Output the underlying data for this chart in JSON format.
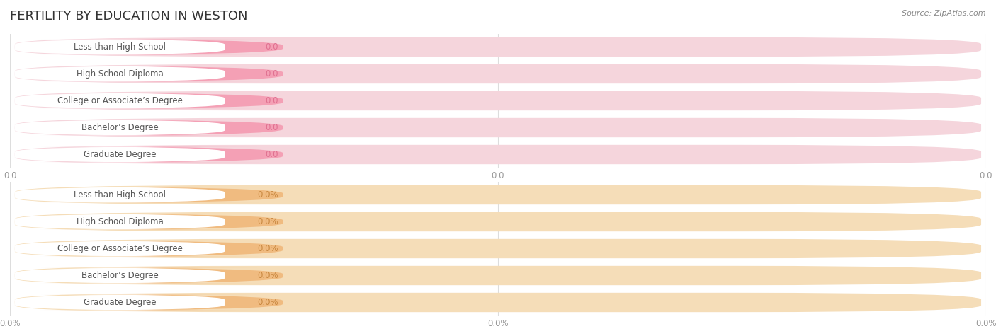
{
  "title": "FERTILITY BY EDUCATION IN WESTON",
  "source": "Source: ZipAtlas.com",
  "categories": [
    "Less than High School",
    "High School Diploma",
    "College or Associate’s Degree",
    "Bachelor’s Degree",
    "Graduate Degree"
  ],
  "top_values": [
    0.0,
    0.0,
    0.0,
    0.0,
    0.0
  ],
  "bottom_values": [
    0.0,
    0.0,
    0.0,
    0.0,
    0.0
  ],
  "top_bar_color": "#F4A0B5",
  "top_bg_color": "#F5D5DC",
  "bottom_bar_color": "#F0BB80",
  "bottom_bg_color": "#F5DDB8",
  "top_value_color": "#E07090",
  "bottom_value_color": "#C88840",
  "label_text_color": "#555555",
  "tick_color": "#999999",
  "grid_color": "#DDDDDD",
  "background_color": "#FFFFFF",
  "title_color": "#333333",
  "source_color": "#888888",
  "font_size_title": 13,
  "font_size_labels": 8.5,
  "font_size_values": 8.5,
  "font_size_ticks": 8.5,
  "font_size_source": 8
}
